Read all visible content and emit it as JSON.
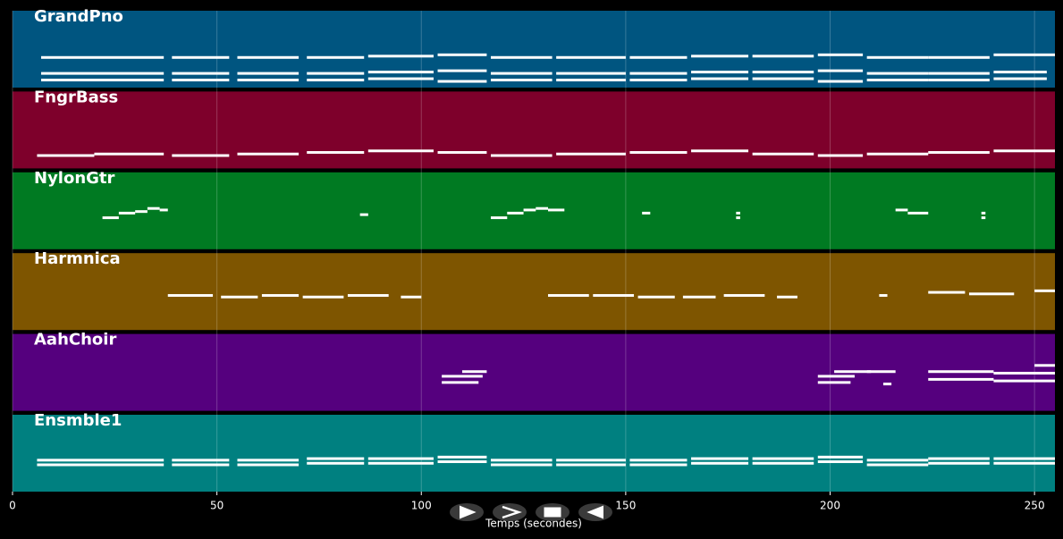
{
  "chart_data": {
    "type": "piano_roll",
    "x_label": "Temps (secondes)",
    "xlim": [
      0,
      255
    ],
    "xticks": [
      0,
      50,
      100,
      150,
      200,
      250
    ],
    "grid": true,
    "series": [
      {
        "name": "GrandPno",
        "color": "#005580",
        "ylim": [
          45,
          80
        ],
        "notes": [
          [
            7,
            37,
            48
          ],
          [
            7,
            37,
            53
          ],
          [
            7,
            37,
            65
          ],
          [
            39,
            53,
            48
          ],
          [
            39,
            53,
            53
          ],
          [
            39,
            53,
            65
          ],
          [
            55,
            70,
            48
          ],
          [
            55,
            70,
            53
          ],
          [
            55,
            70,
            65
          ],
          [
            72,
            86,
            48
          ],
          [
            72,
            86,
            53
          ],
          [
            72,
            86,
            65
          ],
          [
            87,
            103,
            49
          ],
          [
            87,
            103,
            54
          ],
          [
            87,
            103,
            66
          ],
          [
            104,
            116,
            47
          ],
          [
            104,
            116,
            55
          ],
          [
            104,
            116,
            67
          ],
          [
            117,
            132,
            48
          ],
          [
            117,
            132,
            53
          ],
          [
            117,
            132,
            65
          ],
          [
            133,
            150,
            48
          ],
          [
            133,
            150,
            53
          ],
          [
            133,
            150,
            65
          ],
          [
            151,
            165,
            48
          ],
          [
            151,
            165,
            53
          ],
          [
            151,
            165,
            65
          ],
          [
            166,
            180,
            49
          ],
          [
            166,
            180,
            54
          ],
          [
            166,
            180,
            66
          ],
          [
            181,
            196,
            49
          ],
          [
            181,
            196,
            54
          ],
          [
            181,
            196,
            66
          ],
          [
            197,
            208,
            47
          ],
          [
            197,
            208,
            55
          ],
          [
            197,
            208,
            67
          ],
          [
            209,
            224,
            48
          ],
          [
            209,
            224,
            53
          ],
          [
            209,
            224,
            65
          ],
          [
            224,
            239,
            48
          ],
          [
            224,
            239,
            53
          ],
          [
            224,
            239,
            65
          ],
          [
            240,
            253,
            49
          ],
          [
            240,
            253,
            54
          ],
          [
            240,
            255,
            67
          ]
        ]
      },
      {
        "name": "FngrBass",
        "color": "#7e002b",
        "ylim": [
          30,
          60
        ],
        "notes": [
          [
            6,
            20,
            36
          ],
          [
            20,
            37,
            37
          ],
          [
            39,
            53,
            36
          ],
          [
            55,
            70,
            37
          ],
          [
            72,
            86,
            38
          ],
          [
            87,
            103,
            39
          ],
          [
            104,
            116,
            38
          ],
          [
            117,
            132,
            36
          ],
          [
            133,
            150,
            37
          ],
          [
            151,
            165,
            38
          ],
          [
            166,
            180,
            39
          ],
          [
            181,
            196,
            37
          ],
          [
            197,
            208,
            36
          ],
          [
            209,
            224,
            37
          ],
          [
            224,
            239,
            38
          ],
          [
            240,
            255,
            39
          ]
        ]
      },
      {
        "name": "NylonGtr",
        "color": "#007a22",
        "ylim": [
          40,
          70
        ],
        "notes": [
          [
            22,
            26,
            58
          ],
          [
            26,
            30,
            61
          ],
          [
            30,
            33,
            62
          ],
          [
            33,
            36,
            64
          ],
          [
            36,
            38,
            63
          ],
          [
            85,
            87,
            60
          ],
          [
            117,
            121,
            58
          ],
          [
            121,
            125,
            61
          ],
          [
            125,
            128,
            63
          ],
          [
            128,
            131,
            64
          ],
          [
            131,
            135,
            63
          ],
          [
            154,
            156,
            61
          ],
          [
            177,
            178,
            58
          ],
          [
            177,
            178,
            61
          ],
          [
            216,
            219,
            63
          ],
          [
            219,
            224,
            61
          ],
          [
            237,
            238,
            58
          ],
          [
            237,
            238,
            61
          ]
        ]
      },
      {
        "name": "Harmnica",
        "color": "#7e5500",
        "ylim": [
          40,
          70
        ],
        "notes": [
          [
            38,
            49,
            60
          ],
          [
            51,
            60,
            59
          ],
          [
            61,
            70,
            60
          ],
          [
            71,
            81,
            59
          ],
          [
            82,
            92,
            60
          ],
          [
            95,
            100,
            59
          ],
          [
            131,
            141,
            60
          ],
          [
            142,
            152,
            60
          ],
          [
            153,
            162,
            59
          ],
          [
            164,
            172,
            59
          ],
          [
            174,
            184,
            60
          ],
          [
            187,
            192,
            59
          ],
          [
            212,
            214,
            60
          ],
          [
            224,
            233,
            62
          ],
          [
            234,
            245,
            61
          ],
          [
            250,
            255,
            63
          ]
        ]
      },
      {
        "name": "AahChoir",
        "color": "#55007e",
        "ylim": [
          40,
          70
        ],
        "notes": [
          [
            105,
            115,
            60
          ],
          [
            105,
            114,
            56
          ],
          [
            110,
            116,
            63
          ],
          [
            197,
            206,
            60
          ],
          [
            197,
            205,
            56
          ],
          [
            201,
            210,
            63
          ],
          [
            209,
            216,
            63
          ],
          [
            213,
            215,
            55
          ],
          [
            224,
            240,
            63
          ],
          [
            224,
            240,
            58
          ],
          [
            240,
            255,
            62
          ],
          [
            240,
            255,
            57
          ],
          [
            250,
            255,
            67
          ]
        ]
      },
      {
        "name": "Ensmble1",
        "color": "#008080",
        "ylim": [
          40,
          70
        ],
        "notes": [
          [
            6,
            37,
            55
          ],
          [
            6,
            37,
            58
          ],
          [
            39,
            53,
            55
          ],
          [
            39,
            53,
            58
          ],
          [
            55,
            70,
            55
          ],
          [
            55,
            70,
            58
          ],
          [
            72,
            86,
            56
          ],
          [
            72,
            86,
            59
          ],
          [
            87,
            103,
            56
          ],
          [
            87,
            103,
            59
          ],
          [
            104,
            116,
            57
          ],
          [
            104,
            116,
            60
          ],
          [
            117,
            132,
            55
          ],
          [
            117,
            132,
            58
          ],
          [
            133,
            150,
            55
          ],
          [
            133,
            150,
            58
          ],
          [
            151,
            165,
            55
          ],
          [
            151,
            165,
            58
          ],
          [
            166,
            180,
            56
          ],
          [
            166,
            180,
            59
          ],
          [
            181,
            196,
            56
          ],
          [
            181,
            196,
            59
          ],
          [
            197,
            208,
            57
          ],
          [
            197,
            208,
            60
          ],
          [
            209,
            224,
            55
          ],
          [
            209,
            224,
            58
          ],
          [
            224,
            239,
            56
          ],
          [
            224,
            239,
            59
          ],
          [
            240,
            255,
            56
          ],
          [
            240,
            255,
            59
          ]
        ]
      }
    ]
  }
}
